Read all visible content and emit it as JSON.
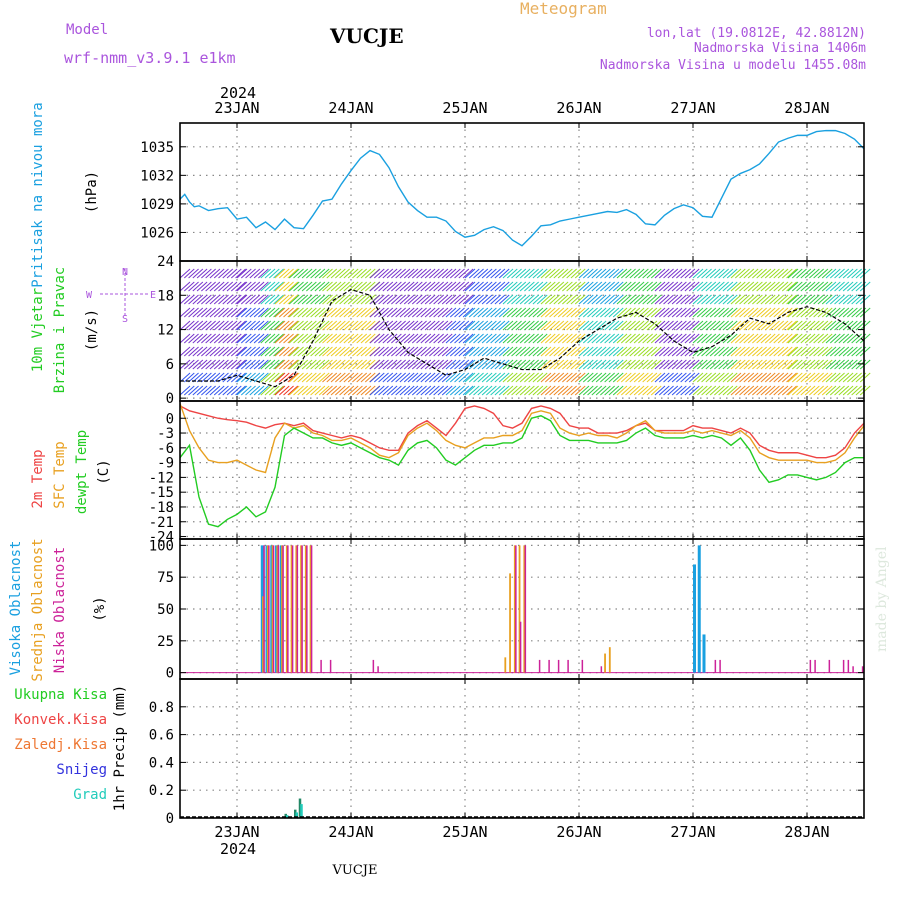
{
  "header": {
    "model_label": "Model",
    "model_name": "wrf-nmm_v3.9.1  e1km",
    "station": "VUCJE",
    "meteogram": "Meteogram",
    "lonlat": "lon,lat (19.0812E, 42.8812N)",
    "elevation": "Nadmorska Visina 1406m",
    "model_elevation": "Nadmorska Visina u modelu 1455.08m"
  },
  "footer": {
    "station": "VUCJE",
    "watermark": "made by Angel"
  },
  "x_axis": {
    "year_label": "2024",
    "ticks": [
      "23JAN",
      "24JAN",
      "25JAN",
      "26JAN",
      "27JAN",
      "28JAN"
    ],
    "tick_hours": [
      12,
      36,
      60,
      84,
      108,
      132
    ]
  },
  "panels": {
    "pressure": {
      "ylabel": "Pritisak na nivou mora",
      "unit": "(hPa)",
      "color": "#1aa0e0",
      "ylim": [
        1023,
        1037.5
      ],
      "yticks": [
        "1026",
        "1029",
        "1032",
        "1035"
      ]
    },
    "wind": {
      "ylabel1": "10m Vjetar",
      "ylabel2": "Brzina i Pravac",
      "unit": "(m/s)",
      "ylim": [
        -0.5,
        24
      ],
      "yticks": [
        "0",
        "6",
        "12",
        "18",
        "24"
      ],
      "compass_n": "N",
      "compass_s": "S",
      "compass_e": "E",
      "compass_w": "W"
    },
    "temp": {
      "ylabel_t2": "2m Temp",
      "ylabel_sfc": "SFC Temp",
      "ylabel_dew": "dewpt Temp",
      "unit": "(C)",
      "ylim": [
        -24.5,
        3.5
      ],
      "yticks": [
        "0",
        "-3",
        "-6",
        "-9",
        "-12",
        "-15",
        "-18",
        "-21",
        "-24"
      ],
      "colors": {
        "t2": "#ee4444",
        "sfc": "#e8a020",
        "dew": "#22cc22"
      }
    },
    "clouds": {
      "label_high": "Visoka Oblacnost",
      "label_mid": "Srednja Oblacnost",
      "label_low": "Niska Oblacnost",
      "unit": "(%)",
      "ylim": [
        -5,
        105
      ],
      "yticks": [
        "0",
        "25",
        "50",
        "75",
        "100"
      ],
      "colors": {
        "high": "#1aa0e0",
        "mid": "#e8a020",
        "low": "#cc2299"
      }
    },
    "precip": {
      "label_total": "Ukupna Kisa",
      "label_conv": "Konvek.Kisa",
      "label_frz": "Zaledj.Kisa",
      "label_snow": "Snijeg",
      "label_grad": "Grad",
      "unit": "1hr Precip (mm)",
      "ylim": [
        0,
        1.0
      ],
      "yticks": [
        "0",
        "0.2",
        "0.4",
        "0.6",
        "0.8"
      ],
      "colors": {
        "total": "#22cc22",
        "conv": "#ee4444",
        "frz": "#ee7733",
        "snow": "#3333dd",
        "grad": "#22ccbb"
      }
    }
  },
  "chart_data": [
    {
      "type": "line",
      "title": "Pritisak na nivou mora",
      "ylabel": "(hPa)",
      "x_unit": "hours from 2024-01-22 12:00",
      "ylim": [
        1023,
        1037.5
      ],
      "x": [
        0,
        1,
        2,
        3,
        4,
        6,
        8,
        10,
        12,
        14,
        16,
        18,
        20,
        22,
        24,
        26,
        28,
        30,
        32,
        34,
        36,
        38,
        40,
        42,
        44,
        46,
        48,
        50,
        52,
        54,
        56,
        58,
        60,
        62,
        64,
        66,
        68,
        70,
        72,
        74,
        76,
        78,
        80,
        82,
        84,
        86,
        88,
        90,
        92,
        94,
        96,
        98,
        100,
        102,
        104,
        106,
        108,
        110,
        112,
        114,
        116,
        118,
        120,
        122,
        124,
        126,
        128,
        130,
        132,
        134,
        136,
        138,
        140,
        142,
        144
      ],
      "series": [
        {
          "values": [
            1029.5,
            1030.0,
            1029.2,
            1028.7,
            1028.8,
            1028.3,
            1028.5,
            1028.6,
            1027.4,
            1027.6,
            1026.5,
            1027.1,
            1026.3,
            1027.4,
            1026.5,
            1026.4,
            1027.8,
            1029.3,
            1029.5,
            1031.1,
            1032.5,
            1033.8,
            1034.6,
            1034.2,
            1032.8,
            1030.8,
            1029.2,
            1028.3,
            1027.6,
            1027.6,
            1027.2,
            1026.1,
            1025.5,
            1025.7,
            1026.3,
            1026.6,
            1026.2,
            1025.2,
            1024.6,
            1025.6,
            1026.7,
            1026.8,
            1027.2,
            1027.4,
            1027.6,
            1027.8,
            1028.0,
            1028.2,
            1028.1,
            1028.4,
            1027.9,
            1026.9,
            1026.8,
            1027.8,
            1028.5,
            1028.9,
            1028.6,
            1027.7,
            1027.6,
            1029.6,
            1031.6,
            1032.2,
            1032.6,
            1033.2,
            1034.3,
            1035.5,
            1035.9,
            1036.2,
            1036.2,
            1036.6,
            1036.7,
            1036.7,
            1036.4,
            1035.8,
            1034.8
          ]
        }
      ]
    },
    {
      "type": "line",
      "title": "10m Vjetar Brzina i Pravac",
      "ylabel": "(m/s)",
      "x_unit": "hours from 2024-01-22 12:00",
      "ylim": [
        -0.5,
        24
      ],
      "x": [
        0,
        4,
        8,
        12,
        16,
        20,
        24,
        28,
        32,
        36,
        40,
        44,
        48,
        52,
        56,
        60,
        64,
        68,
        72,
        76,
        80,
        84,
        88,
        92,
        96,
        100,
        104,
        108,
        112,
        116,
        120,
        124,
        128,
        132,
        136,
        140,
        144
      ],
      "series": [
        {
          "name": "speed",
          "values": [
            3,
            3,
            3,
            4,
            3,
            2,
            4,
            10,
            17,
            19,
            18,
            12,
            8,
            6,
            4,
            5,
            7,
            6,
            5,
            5,
            7,
            10,
            12,
            14,
            15,
            13,
            10,
            8,
            9,
            11,
            14,
            13,
            15,
            16,
            15,
            13,
            10
          ]
        }
      ]
    },
    {
      "type": "line",
      "title": "Temperature",
      "ylabel": "(C)",
      "x_unit": "hours from 2024-01-22 12:00",
      "ylim": [
        -24.5,
        3.5
      ],
      "x": [
        0,
        2,
        4,
        6,
        8,
        10,
        12,
        14,
        16,
        18,
        20,
        22,
        24,
        26,
        28,
        30,
        32,
        34,
        36,
        38,
        40,
        42,
        44,
        46,
        48,
        50,
        52,
        54,
        56,
        58,
        60,
        62,
        64,
        66,
        68,
        70,
        72,
        74,
        76,
        78,
        80,
        82,
        84,
        86,
        88,
        90,
        92,
        94,
        96,
        98,
        100,
        102,
        104,
        106,
        108,
        110,
        112,
        114,
        116,
        118,
        120,
        122,
        124,
        126,
        128,
        130,
        132,
        134,
        136,
        138,
        140,
        142,
        144
      ],
      "series": [
        {
          "name": "2m Temp",
          "values": [
            2.5,
            1.5,
            1.0,
            0.5,
            0.0,
            -0.3,
            -0.5,
            -0.8,
            -1.5,
            -2.0,
            -1.3,
            -1.0,
            -1.5,
            -1.0,
            -2.5,
            -3.0,
            -3.5,
            -4.0,
            -3.5,
            -4.0,
            -5.0,
            -6.0,
            -6.5,
            -6.5,
            -3.0,
            -1.5,
            -0.5,
            -2.0,
            -3.5,
            -1.0,
            2.0,
            2.5,
            2.0,
            1.0,
            -1.5,
            -2.0,
            -1.0,
            2.0,
            2.5,
            2.0,
            1.0,
            -1.5,
            -2.0,
            -2.0,
            -3.0,
            -3.0,
            -3.0,
            -2.5,
            -1.5,
            -1.0,
            -2.5,
            -2.5,
            -2.5,
            -2.5,
            -1.5,
            -2.0,
            -2.0,
            -2.5,
            -3.0,
            -2.0,
            -3.0,
            -5.5,
            -6.5,
            -7.0,
            -7.0,
            -7.0,
            -7.5,
            -8.0,
            -8.0,
            -7.5,
            -6.0,
            -3.0,
            -1.0
          ]
        },
        {
          "name": "SFC Temp",
          "values": [
            3.0,
            -2.5,
            -6.0,
            -8.5,
            -9.0,
            -9.0,
            -8.5,
            -9.5,
            -10.5,
            -11.0,
            -4.0,
            -1.0,
            -2.0,
            -1.5,
            -3.0,
            -3.5,
            -4.5,
            -4.5,
            -4.0,
            -5.0,
            -6.0,
            -7.5,
            -8.0,
            -7.0,
            -3.5,
            -2.0,
            -1.0,
            -2.5,
            -4.5,
            -5.5,
            -6.0,
            -5.0,
            -4.0,
            -4.0,
            -3.5,
            -3.5,
            -2.5,
            1.0,
            1.5,
            1.0,
            -2.0,
            -3.0,
            -3.5,
            -3.0,
            -3.5,
            -3.5,
            -4.0,
            -3.0,
            -1.5,
            -0.5,
            -2.5,
            -3.0,
            -3.0,
            -3.0,
            -2.5,
            -3.0,
            -2.5,
            -3.0,
            -3.5,
            -2.5,
            -4.0,
            -7.0,
            -8.0,
            -8.5,
            -8.5,
            -8.5,
            -8.5,
            -9.0,
            -9.0,
            -8.5,
            -7.0,
            -4.0,
            -1.5
          ]
        },
        {
          "name": "dewpt Temp",
          "values": [
            -8.0,
            -5.5,
            -16.0,
            -21.5,
            -22.0,
            -20.5,
            -19.5,
            -18.0,
            -20.0,
            -19.0,
            -14.0,
            -3.5,
            -2.0,
            -3.0,
            -4.0,
            -4.0,
            -5.0,
            -5.5,
            -5.0,
            -6.0,
            -7.0,
            -8.0,
            -8.5,
            -9.5,
            -6.5,
            -5.0,
            -4.5,
            -6.0,
            -8.5,
            -9.5,
            -8.0,
            -6.5,
            -5.5,
            -5.5,
            -5.0,
            -5.0,
            -4.0,
            0.0,
            0.5,
            -0.5,
            -3.5,
            -4.5,
            -4.5,
            -4.5,
            -5.0,
            -5.0,
            -5.0,
            -4.5,
            -3.0,
            -2.0,
            -3.5,
            -4.0,
            -4.0,
            -4.0,
            -3.5,
            -4.0,
            -3.5,
            -4.0,
            -5.5,
            -4.0,
            -6.5,
            -10.5,
            -13.0,
            -12.5,
            -11.5,
            -11.5,
            -12.0,
            -12.5,
            -12.0,
            -11.0,
            -9.0,
            -8.0,
            -8.0
          ]
        }
      ]
    },
    {
      "type": "bar",
      "title": "Oblacnost",
      "ylabel": "(%)",
      "x_unit": "hours from 2024-01-22 12:00",
      "ylim": [
        -5,
        105
      ],
      "series": [
        {
          "name": "Visoka Oblacnost",
          "x": [
            17,
            18,
            19,
            20,
            21,
            108,
            109,
            110
          ],
          "values": [
            100,
            100,
            100,
            100,
            100,
            85,
            100,
            30
          ]
        },
        {
          "name": "Srednja Oblacnost",
          "x": [
            17,
            18,
            19,
            20,
            21,
            22,
            23,
            24,
            25,
            26,
            27,
            68,
            69,
            70,
            71,
            72,
            89,
            90
          ],
          "values": [
            60,
            100,
            100,
            100,
            100,
            100,
            100,
            100,
            100,
            100,
            100,
            12,
            78,
            100,
            100,
            100,
            15,
            20
          ]
        },
        {
          "name": "Niska Oblacnost",
          "x": [
            17,
            18,
            19,
            20,
            21,
            22,
            23,
            24,
            25,
            26,
            27,
            29,
            31,
            40,
            41,
            70,
            71,
            72,
            75,
            77,
            79,
            81,
            84,
            88,
            112,
            113,
            132,
            133,
            136,
            139,
            140,
            141,
            143
          ],
          "values": [
            100,
            100,
            100,
            100,
            100,
            100,
            100,
            100,
            100,
            100,
            100,
            10,
            10,
            10,
            5,
            100,
            40,
            100,
            10,
            10,
            10,
            10,
            10,
            5,
            10,
            10,
            10,
            10,
            10,
            10,
            10,
            5,
            5
          ]
        }
      ]
    },
    {
      "type": "bar",
      "title": "1hr Precip",
      "ylabel": "1hr Precip (mm)",
      "x_unit": "hours from 2024-01-22 12:00",
      "ylim": [
        0,
        1.0
      ],
      "series": [
        {
          "name": "Ukupna Kisa",
          "x": [
            22,
            24,
            25
          ],
          "values": [
            0.03,
            0.06,
            0.14
          ]
        },
        {
          "name": "Grad",
          "x": [
            22,
            24,
            25
          ],
          "values": [
            0.02,
            0.04,
            0.1
          ]
        }
      ]
    }
  ]
}
